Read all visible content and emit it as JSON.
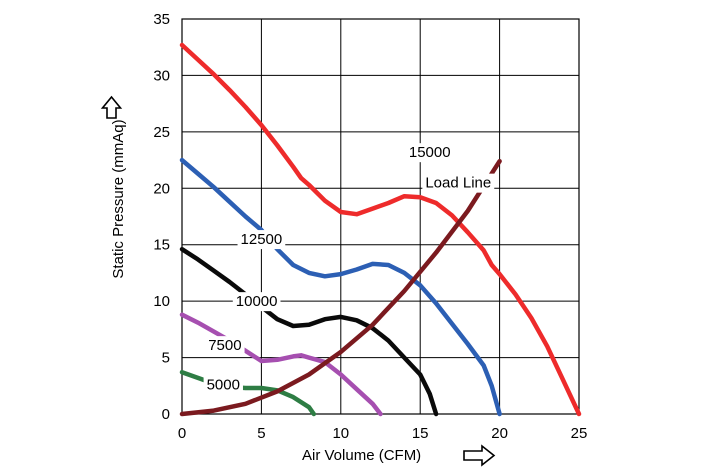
{
  "chart_data": {
    "type": "line",
    "title": "",
    "xlabel": "Air Volume (CFM)",
    "ylabel": "Static Pressure (mmAq)",
    "xlim": [
      0,
      25
    ],
    "ylim": [
      0,
      35
    ],
    "x_ticks": [
      "0",
      "5",
      "10",
      "15",
      "20",
      "25"
    ],
    "y_ticks": [
      "0",
      "5",
      "10",
      "15",
      "20",
      "25",
      "30",
      "35"
    ],
    "grid": true,
    "legend": "inline labels",
    "series": [
      {
        "name": "15000",
        "color": "#ee2b2b",
        "points": [
          [
            0,
            32.7
          ],
          [
            1,
            31.4
          ],
          [
            2,
            30.1
          ],
          [
            3,
            28.7
          ],
          [
            4,
            27.2
          ],
          [
            5,
            25.6
          ],
          [
            6,
            23.8
          ],
          [
            7,
            21.9
          ],
          [
            7.5,
            20.9
          ],
          [
            8,
            20.3
          ],
          [
            9,
            18.9
          ],
          [
            10,
            17.9
          ],
          [
            11,
            17.7
          ],
          [
            12,
            18.2
          ],
          [
            13,
            18.7
          ],
          [
            14,
            19.3
          ],
          [
            15,
            19.2
          ],
          [
            16,
            18.7
          ],
          [
            17,
            17.6
          ],
          [
            18,
            16.1
          ],
          [
            19,
            14.5
          ],
          [
            19.5,
            13.2
          ],
          [
            20,
            12.4
          ],
          [
            21,
            10.6
          ],
          [
            22,
            8.5
          ],
          [
            23,
            6.0
          ],
          [
            24,
            3.0
          ],
          [
            25,
            0
          ]
        ],
        "label_at": [
          15.6,
          23.2
        ]
      },
      {
        "name": "12500",
        "color": "#2c5fb4",
        "points": [
          [
            0,
            22.5
          ],
          [
            1,
            21.3
          ],
          [
            2,
            20.1
          ],
          [
            3,
            18.8
          ],
          [
            4,
            17.5
          ],
          [
            5,
            16.3
          ],
          [
            6,
            14.6
          ],
          [
            7,
            13.2
          ],
          [
            8,
            12.5
          ],
          [
            9,
            12.2
          ],
          [
            10,
            12.4
          ],
          [
            11,
            12.8
          ],
          [
            12,
            13.3
          ],
          [
            13,
            13.2
          ],
          [
            14,
            12.5
          ],
          [
            15,
            11.4
          ],
          [
            16,
            9.8
          ],
          [
            17,
            8.0
          ],
          [
            18,
            6.2
          ],
          [
            19,
            4.3
          ],
          [
            19.5,
            2.5
          ],
          [
            20,
            0
          ]
        ],
        "label_at": [
          5.0,
          15.5
        ]
      },
      {
        "name": "10000",
        "color": "#0a0a0a",
        "points": [
          [
            0,
            14.6
          ],
          [
            1,
            13.7
          ],
          [
            2,
            12.7
          ],
          [
            3,
            11.7
          ],
          [
            4,
            10.6
          ],
          [
            5,
            9.5
          ],
          [
            6,
            8.4
          ],
          [
            7,
            7.8
          ],
          [
            8,
            7.9
          ],
          [
            9,
            8.4
          ],
          [
            10,
            8.6
          ],
          [
            11,
            8.3
          ],
          [
            12,
            7.6
          ],
          [
            13,
            6.5
          ],
          [
            14,
            5.0
          ],
          [
            15,
            3.5
          ],
          [
            15.6,
            1.8
          ],
          [
            16,
            0
          ]
        ],
        "label_at": [
          4.7,
          10.0
        ]
      },
      {
        "name": "7500",
        "color": "#a64fb0",
        "points": [
          [
            0,
            8.8
          ],
          [
            1,
            8.1
          ],
          [
            2,
            7.3
          ],
          [
            3,
            6.5
          ],
          [
            4,
            5.6
          ],
          [
            5,
            4.7
          ],
          [
            6,
            4.8
          ],
          [
            7,
            5.1
          ],
          [
            7.5,
            5.2
          ],
          [
            8,
            5.0
          ],
          [
            9,
            4.6
          ],
          [
            10,
            3.5
          ],
          [
            11,
            2.2
          ],
          [
            12,
            0.9
          ],
          [
            12.5,
            0
          ]
        ],
        "label_at": [
          2.7,
          6.1
        ]
      },
      {
        "name": "5000",
        "color": "#2e7d44",
        "points": [
          [
            0,
            3.7
          ],
          [
            1,
            3.2
          ],
          [
            2,
            2.7
          ],
          [
            3,
            2.4
          ],
          [
            4,
            2.3
          ],
          [
            5,
            2.3
          ],
          [
            6,
            2.1
          ],
          [
            7,
            1.5
          ],
          [
            8,
            0.6
          ],
          [
            8.3,
            0
          ]
        ],
        "label_at": [
          2.6,
          2.6
        ]
      },
      {
        "name": "Load Line",
        "color": "#7b1a1f",
        "points": [
          [
            0,
            0
          ],
          [
            2,
            0.3
          ],
          [
            4,
            0.9
          ],
          [
            6,
            2.0
          ],
          [
            8,
            3.5
          ],
          [
            10,
            5.5
          ],
          [
            12,
            7.9
          ],
          [
            14,
            10.9
          ],
          [
            16,
            14.3
          ],
          [
            18,
            18.0
          ],
          [
            20,
            22.4
          ]
        ],
        "label_at": [
          17.4,
          20.5
        ]
      }
    ]
  }
}
